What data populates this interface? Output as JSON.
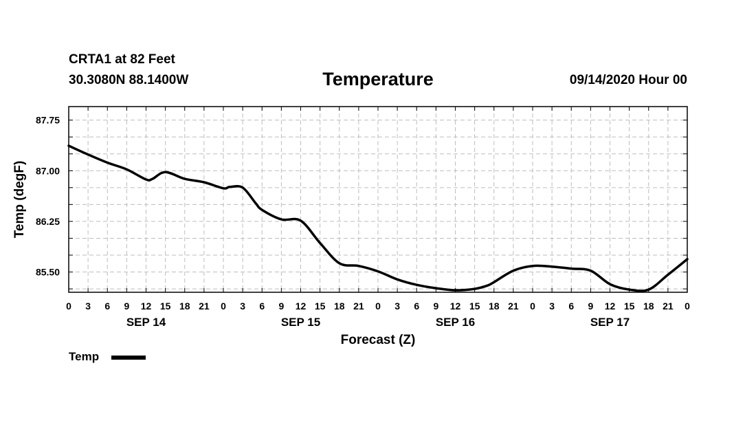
{
  "header": {
    "station": "CRTA1 at 82 Feet",
    "coords": "30.3080N 88.1400W",
    "title": "Temperature",
    "date": "09/14/2020 Hour 00"
  },
  "legend": {
    "label": "Temp",
    "color": "#000000"
  },
  "chart_data": {
    "type": "line",
    "title": "Temperature",
    "xlabel": "Forecast (Z)",
    "ylabel": "Temp (degF)",
    "x_unit": "hours from 09/14/2020 00Z",
    "xlim": [
      0,
      96
    ],
    "ylim": [
      85.2,
      87.95
    ],
    "yticks": [
      85.5,
      86.25,
      87.0,
      87.75
    ],
    "ytick_labels": [
      "85.50",
      "86.25",
      "87.00",
      "87.75"
    ],
    "xticks": [
      0,
      3,
      6,
      9,
      12,
      15,
      18,
      21,
      24,
      27,
      30,
      33,
      36,
      39,
      42,
      45,
      48,
      51,
      54,
      57,
      60,
      63,
      66,
      69,
      72,
      75,
      78,
      81,
      84,
      87,
      90,
      93,
      96
    ],
    "xtick_labels": [
      "0",
      "3",
      "6",
      "9",
      "12",
      "15",
      "18",
      "21",
      "0",
      "3",
      "6",
      "9",
      "12",
      "15",
      "18",
      "21",
      "0",
      "3",
      "6",
      "9",
      "12",
      "15",
      "18",
      "21",
      "0",
      "3",
      "6",
      "9",
      "12",
      "15",
      "18",
      "21",
      "0"
    ],
    "date_labels": [
      {
        "x": 12,
        "label": "SEP 14"
      },
      {
        "x": 36,
        "label": "SEP 15"
      },
      {
        "x": 60,
        "label": "SEP 16"
      },
      {
        "x": 84,
        "label": "SEP 17"
      }
    ],
    "grid": true,
    "line_color": "#000000",
    "series": [
      {
        "name": "Temp",
        "x": [
          0,
          3,
          6,
          9,
          12,
          13,
          15,
          18,
          21,
          24,
          25,
          27,
          29,
          30,
          33,
          36,
          39,
          42,
          45,
          48,
          51,
          54,
          57,
          60,
          63,
          65,
          66,
          69,
          72,
          75,
          78,
          81,
          84,
          87,
          90,
          93,
          96
        ],
        "y": [
          87.37,
          87.24,
          87.12,
          87.02,
          86.87,
          86.88,
          86.98,
          86.88,
          86.83,
          86.74,
          86.76,
          86.75,
          86.52,
          86.42,
          86.28,
          86.26,
          85.93,
          85.63,
          85.59,
          85.51,
          85.39,
          85.31,
          85.26,
          85.23,
          85.25,
          85.3,
          85.35,
          85.52,
          85.59,
          85.58,
          85.55,
          85.52,
          85.32,
          85.24,
          85.24,
          85.46,
          85.69
        ]
      }
    ]
  }
}
